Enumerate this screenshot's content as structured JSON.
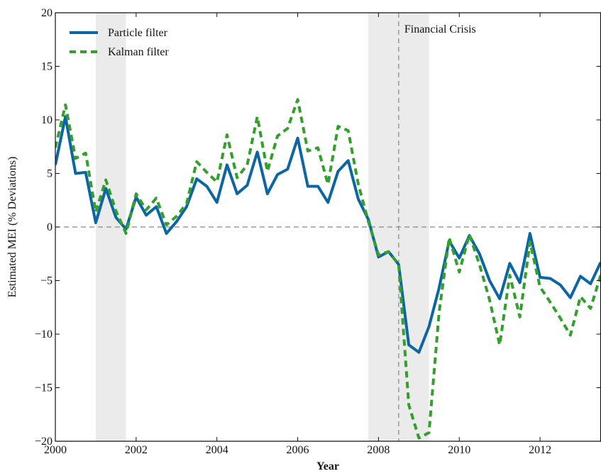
{
  "chart_data": {
    "type": "line",
    "xlabel": "Year",
    "ylabel": "Estimated MEI (% Deviations)",
    "annotation": "Financial Crisis",
    "annotation_x": 2008.5,
    "hline": 0,
    "shaded_regions": [
      [
        2001.0,
        2001.75
      ],
      [
        2007.75,
        2009.25
      ]
    ],
    "legend": "upper left",
    "xlim": [
      2000,
      2013.5
    ],
    "ylim": [
      -20,
      20
    ],
    "xticks": [
      2000,
      2002,
      2004,
      2006,
      2008,
      2010,
      2012
    ],
    "yticks": [
      {
        "value": -20,
        "label": "−20"
      },
      {
        "value": -15,
        "label": "−15"
      },
      {
        "value": -10,
        "label": "−10"
      },
      {
        "value": -5,
        "label": "−5"
      },
      0,
      5,
      10,
      15,
      20
    ],
    "x": [
      2000,
      2000.25,
      2000.5,
      2000.75,
      2001,
      2001.25,
      2001.5,
      2001.75,
      2002,
      2002.25,
      2002.5,
      2002.75,
      2003,
      2003.25,
      2003.5,
      2003.75,
      2004,
      2004.25,
      2004.5,
      2004.75,
      2005,
      2005.25,
      2005.5,
      2005.75,
      2006,
      2006.25,
      2006.5,
      2006.75,
      2007,
      2007.25,
      2007.5,
      2007.75,
      2008,
      2008.25,
      2008.5,
      2008.75,
      2009,
      2009.25,
      2009.5,
      2009.75,
      2010,
      2010.25,
      2010.5,
      2010.75,
      2011,
      2011.25,
      2011.5,
      2011.75,
      2012,
      2012.25,
      2012.5,
      2012.75,
      2013,
      2013.25,
      2013.5
    ],
    "series": [
      {
        "name": "Particle filter",
        "color": "#0b66a3",
        "dash": "solid",
        "values": [
          5.8,
          10.3,
          5.0,
          5.1,
          0.4,
          3.6,
          0.9,
          -0.2,
          2.8,
          1.1,
          1.9,
          -0.6,
          0.5,
          1.9,
          4.5,
          3.8,
          2.3,
          5.8,
          3.1,
          3.9,
          7.0,
          3.1,
          4.9,
          5.4,
          8.3,
          3.8,
          3.8,
          2.3,
          5.2,
          6.2,
          2.6,
          0.7,
          -2.8,
          -2.3,
          -3.5,
          -11.0,
          -11.7,
          -9.3,
          -5.7,
          -1.3,
          -2.9,
          -0.8,
          -2.5,
          -5.0,
          -6.7,
          -3.4,
          -5.2,
          -0.6,
          -4.7,
          -4.8,
          -5.4,
          -6.6,
          -4.6,
          -5.3,
          -3.3
        ]
      },
      {
        "name": "Kalman filter",
        "color": "#33a02c",
        "dash": "dashed",
        "values": [
          7.4,
          11.4,
          6.4,
          6.9,
          1.4,
          4.4,
          1.5,
          -0.6,
          3.1,
          1.6,
          2.7,
          0.2,
          1.0,
          2.2,
          6.1,
          5.1,
          4.2,
          8.6,
          4.6,
          5.8,
          10.3,
          5.2,
          8.5,
          9.2,
          11.9,
          7.1,
          7.4,
          4.0,
          9.4,
          9.0,
          4.0,
          0.5,
          -2.6,
          -2.3,
          -3.5,
          -16.6,
          -19.7,
          -19.2,
          -8.0,
          -1.0,
          -4.2,
          -0.7,
          -3.5,
          -6.8,
          -11.0,
          -4.5,
          -8.4,
          -1.4,
          -5.6,
          -7.0,
          -8.5,
          -10.1,
          -6.5,
          -7.6,
          -4.5
        ]
      }
    ]
  }
}
